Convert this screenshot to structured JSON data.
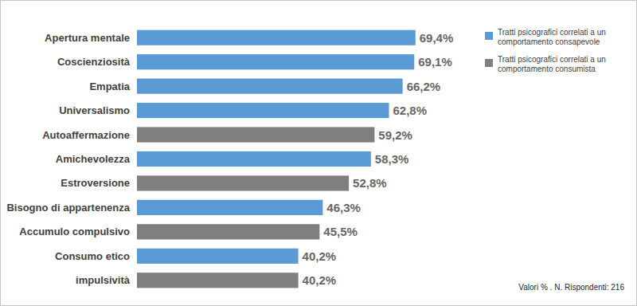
{
  "chart_data": {
    "type": "bar",
    "orientation": "horizontal",
    "stacked": true,
    "data_labels": true,
    "tick_labels": "y",
    "grid": false,
    "legend": "top-right",
    "categories": [
      "Apertura mentale",
      "Coscienziosità",
      "Empatia",
      "Universalismo",
      "Autoaffermazione",
      "Amichevolezza",
      "Estroversione",
      "Bisogno di appartenenza",
      "Accumulo compulsivo",
      "Consumo etico",
      "impulsività"
    ],
    "xlim": [
      0,
      100
    ],
    "series": [
      {
        "name": "Tratti psicografici correlati a un comportamento consapevole",
        "color": "#5b9bd5",
        "values": [
          69.4,
          69.1,
          66.2,
          62.8,
          null,
          58.3,
          null,
          46.3,
          null,
          40.2,
          null
        ],
        "value_labels": [
          "69,4%",
          "69,1%",
          "66,2%",
          "62,8%",
          null,
          "58,3%",
          null,
          "46,3%",
          null,
          "40,2%",
          null
        ]
      },
      {
        "name": "Tratti psicografici correlati a un comportamento consumista",
        "color": "#7f7f7f",
        "values": [
          null,
          null,
          null,
          null,
          59.2,
          null,
          52.8,
          null,
          45.5,
          null,
          40.2
        ],
        "value_labels": [
          null,
          null,
          null,
          null,
          "59,2%",
          null,
          "52,8%",
          null,
          "45,5%",
          null,
          "40,2%"
        ]
      }
    ],
    "annotations": [
      "Valori % . N. Rispondenti: 216"
    ]
  }
}
